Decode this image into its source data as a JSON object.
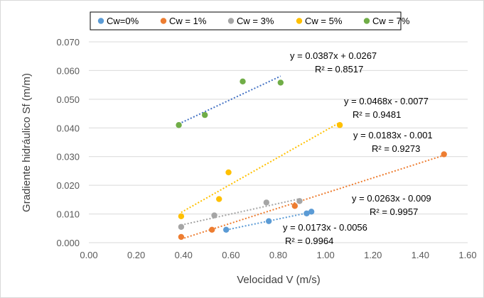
{
  "chart_data": {
    "type": "scatter",
    "xlabel": "Velocidad V (m/s)",
    "ylabel": "Gradiente hidráulico Sf (m/m)",
    "xlim": [
      0,
      1.6
    ],
    "ylim": [
      0,
      0.07
    ],
    "x_ticks": [
      "0.00",
      "0.20",
      "0.40",
      "0.60",
      "0.80",
      "1.00",
      "1.20",
      "1.40",
      "1.60"
    ],
    "y_ticks": [
      "0.000",
      "0.010",
      "0.020",
      "0.030",
      "0.040",
      "0.050",
      "0.060",
      "0.070"
    ],
    "grid": "horizontal",
    "legend_position": "top",
    "series": [
      {
        "name": "Cw=0%",
        "color": "#5b9bd5",
        "points": [
          [
            0.58,
            0.0045
          ],
          [
            0.76,
            0.0075
          ],
          [
            0.92,
            0.0102
          ],
          [
            0.94,
            0.0108
          ]
        ],
        "trendline": {
          "slope": 0.0173,
          "intercept": -0.0056,
          "x_range": [
            0.58,
            0.94
          ]
        },
        "equation": "y = 0.0173x - 0.0056",
        "r2": "R² = 0.9964"
      },
      {
        "name": "Cw = 1%",
        "color": "#ed7d31",
        "points": [
          [
            0.39,
            0.002
          ],
          [
            0.52,
            0.0045
          ],
          [
            0.87,
            0.0128
          ],
          [
            1.5,
            0.0308
          ]
        ],
        "trendline": {
          "slope": 0.0263,
          "intercept": -0.009,
          "x_range": [
            0.39,
            1.5
          ]
        },
        "equation": "y = 0.0263x - 0.009",
        "r2": "R² = 0.9957"
      },
      {
        "name": "Cw = 3%",
        "color": "#a5a5a5",
        "points": [
          [
            0.39,
            0.0055
          ],
          [
            0.53,
            0.0095
          ],
          [
            0.75,
            0.014
          ],
          [
            0.89,
            0.0145
          ]
        ],
        "trendline": {
          "slope": 0.0183,
          "intercept": -0.001,
          "x_range": [
            0.39,
            0.89
          ]
        },
        "equation": "y = 0.0183x - 0.001",
        "r2": "R² = 0.9273"
      },
      {
        "name": "Cw = 5%",
        "color": "#ffc000",
        "points": [
          [
            0.39,
            0.0092
          ],
          [
            0.55,
            0.0152
          ],
          [
            0.59,
            0.0245
          ],
          [
            1.06,
            0.041
          ]
        ],
        "trendline": {
          "slope": 0.0468,
          "intercept": -0.0077,
          "x_range": [
            0.39,
            1.06
          ]
        },
        "equation": "y = 0.0468x - 0.0077",
        "r2": "R² = 0.9481"
      },
      {
        "name": "Cw = 7%",
        "color": "#70ad47",
        "points": [
          [
            0.38,
            0.041
          ],
          [
            0.49,
            0.0445
          ],
          [
            0.65,
            0.0562
          ],
          [
            0.81,
            0.0558
          ]
        ],
        "trendline": {
          "slope": 0.0387,
          "intercept": 0.0267,
          "trend_color": "#4472c4",
          "x_range": [
            0.38,
            0.81
          ]
        },
        "equation": "y = 0.0387x + 0.0267",
        "r2": "R² = 0.8517"
      }
    ]
  }
}
